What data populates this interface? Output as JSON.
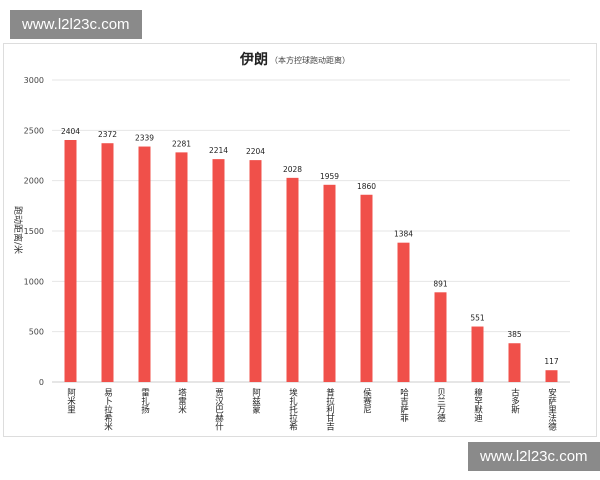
{
  "watermark_top": "www.l2l23c.com",
  "watermark_bottom": "www.l2l23c.com",
  "chart_data": {
    "type": "bar",
    "title": "伊朗",
    "subtitle": "（本方控球跑动距离）",
    "ylabel": "跑动距离/米",
    "xlabel": "",
    "ylim": [
      0,
      3000
    ],
    "yticks": [
      0,
      500,
      1000,
      1500,
      2000,
      2500,
      3000
    ],
    "grid": true,
    "bar_color": "#f0504a",
    "categories": [
      "阿米里",
      "易卜拉希米",
      "雷扎扬",
      "塔雷米",
      "贾汉巴赫什",
      "阿兹蒙",
      "埃扎托拉希",
      "普拉利甘吉",
      "侯赛尼",
      "哈吉萨菲",
      "贝兰万德",
      "穆罕默迪",
      "古多斯",
      "安萨里法德"
    ],
    "values": [
      2404,
      2372,
      2339,
      2281,
      2214,
      2204,
      2028,
      1959,
      1860,
      1384,
      891,
      551,
      385,
      117
    ]
  }
}
